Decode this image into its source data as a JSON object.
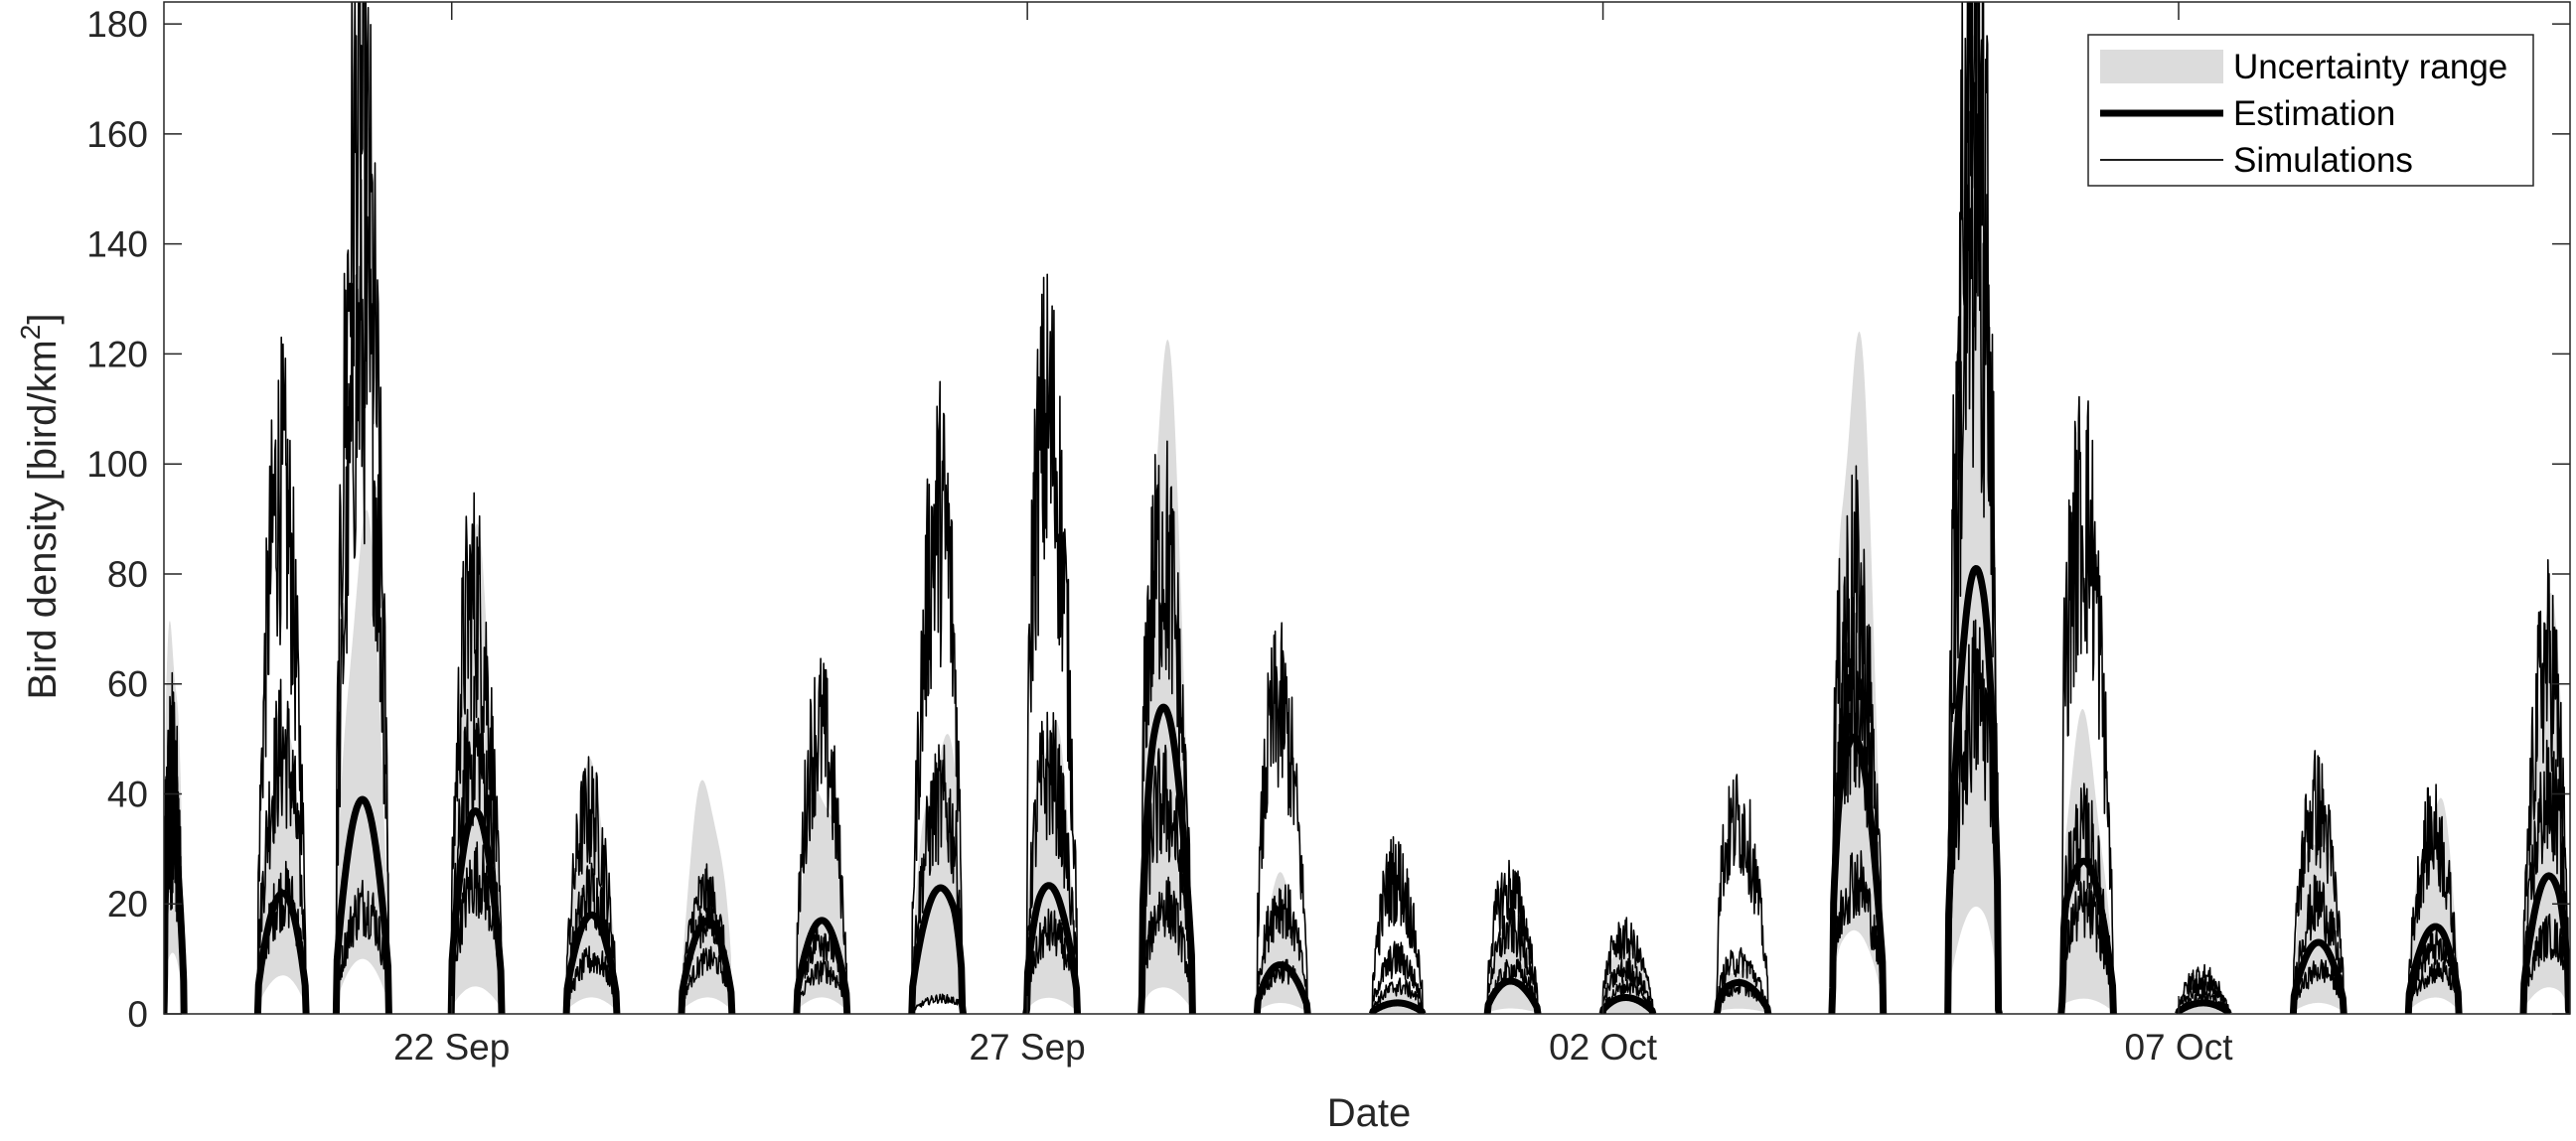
{
  "chart_data": {
    "type": "area",
    "xlabel": "Date",
    "ylabel_main": "Bird density [bird/km",
    "ylabel_sup": "2",
    "ylabel_end": "]",
    "ylim": [
      0,
      184
    ],
    "xlim_days": [
      19.5,
      40.4
    ],
    "yticks": [
      0,
      20,
      40,
      60,
      80,
      100,
      120,
      140,
      160,
      180
    ],
    "xticks": [
      {
        "day": 22,
        "label": "22 Sep"
      },
      {
        "day": 27,
        "label": "27 Sep"
      },
      {
        "day": 32,
        "label": "02 Oct"
      },
      {
        "day": 37,
        "label": "07 Oct"
      }
    ],
    "grid": false,
    "legend_position": "top-right",
    "legend": [
      {
        "key": "band",
        "label": "Uncertainty range"
      },
      {
        "key": "est",
        "label": "Estimation"
      },
      {
        "key": "sim",
        "label": "Simulations"
      }
    ],
    "colors": {
      "band": "#dcdcdc",
      "estimation": "#000000",
      "simulations": "#000000",
      "axis": "#262626"
    },
    "series": [
      {
        "name": "Uncertainty range",
        "kind": "band"
      },
      {
        "name": "Estimation",
        "kind": "line"
      },
      {
        "name": "Simulations",
        "kind": "lines"
      }
    ],
    "nights": [
      {
        "start": 19.5,
        "end": 19.68,
        "est": 35,
        "estPeak": 0.1,
        "bandHi": 85,
        "bandLo": 12,
        "sims": [
          51,
          45,
          30
        ],
        "roughness": 0.35
      },
      {
        "start": 20.3,
        "end": 20.75,
        "est": 22,
        "estPeak": 0.55,
        "bandHi": 57,
        "bandLo": 7,
        "sims": [
          96,
          48,
          22
        ],
        "roughness": 0.3
      },
      {
        "start": 20.98,
        "end": 21.47,
        "est": 39,
        "estPeak": 0.5,
        "bandHi": 96,
        "bandLo": 10,
        "sims": [
          162,
          120,
          20
        ],
        "roughness": 0.3
      },
      {
        "start": 21.98,
        "end": 22.45,
        "est": 37,
        "estPeak": 0.45,
        "bandHi": 90,
        "bandLo": 5,
        "sims": [
          77,
          48,
          25
        ],
        "roughness": 0.3
      },
      {
        "start": 22.98,
        "end": 23.45,
        "est": 18,
        "estPeak": 0.5,
        "bandHi": 47,
        "bandLo": 3,
        "sims": [
          37,
          22,
          10
        ],
        "roughness": 0.3
      },
      {
        "start": 23.98,
        "end": 24.45,
        "est": 17,
        "estPeak": 0.55,
        "bandHi": 46,
        "bandLo": 3,
        "sims": [
          22,
          17,
          10
        ],
        "roughness": 0.25
      },
      {
        "start": 24.98,
        "end": 25.45,
        "est": 17,
        "estPeak": 0.5,
        "bandHi": 48,
        "bandLo": 3,
        "sims": [
          52,
          14,
          8
        ],
        "roughness": 0.3
      },
      {
        "start": 25.98,
        "end": 26.45,
        "est": 24,
        "estPeak": 0.8,
        "bandHi": 58,
        "bandLo": 3,
        "sims": [
          92,
          40,
          3
        ],
        "roughness": 0.3
      },
      {
        "start": 26.98,
        "end": 27.45,
        "est": 24,
        "estPeak": 0.3,
        "bandHi": 61,
        "bandLo": 3,
        "sims": [
          113,
          45,
          15
        ],
        "roughness": 0.3
      },
      {
        "start": 27.98,
        "end": 28.45,
        "est": 58,
        "estPeak": 0.25,
        "bandHi": 132,
        "bandLo": 5,
        "sims": [
          90,
          40,
          20
        ],
        "roughness": 0.3
      },
      {
        "start": 28.98,
        "end": 29.45,
        "est": 9,
        "estPeak": 0.4,
        "bandHi": 26,
        "bandLo": 2,
        "sims": [
          57,
          20,
          8
        ],
        "roughness": 0.3
      },
      {
        "start": 29.98,
        "end": 30.45,
        "est": 2,
        "estPeak": 0.5,
        "bandHi": 5,
        "bandLo": 0,
        "sims": [
          25,
          10,
          5
        ],
        "roughness": 0.35
      },
      {
        "start": 30.98,
        "end": 31.45,
        "est": 6,
        "estPeak": 0.4,
        "bandHi": 18,
        "bandLo": 1,
        "sims": [
          23,
          15,
          8
        ],
        "roughness": 0.3
      },
      {
        "start": 31.98,
        "end": 32.45,
        "est": 3,
        "estPeak": 0.4,
        "bandHi": 14,
        "bandLo": 0,
        "sims": [
          14,
          8,
          5
        ],
        "roughness": 0.3
      },
      {
        "start": 32.98,
        "end": 33.45,
        "est": 6,
        "estPeak": 0.2,
        "bandHi": 10,
        "bandLo": 1,
        "sims": [
          38,
          10,
          5
        ],
        "roughness": 0.3
      },
      {
        "start": 33.98,
        "end": 34.45,
        "est": 53,
        "estPeak": 0.2,
        "bandHi": 138,
        "bandLo": 16,
        "sims": [
          84,
          60,
          25
        ],
        "roughness": 0.3
      },
      {
        "start": 34.98,
        "end": 35.45,
        "est": 83,
        "estPeak": 0.7,
        "bandHi": 184,
        "bandLo": 20,
        "sims": [
          184,
          140,
          60
        ],
        "roughness": 0.3
      },
      {
        "start": 35.98,
        "end": 36.45,
        "est": 30,
        "estPeak": 0.1,
        "bandHi": 60,
        "bandLo": 3,
        "sims": [
          99,
          35,
          20
        ],
        "roughness": 0.3
      },
      {
        "start": 36.98,
        "end": 37.45,
        "est": 2,
        "estPeak": 0.5,
        "bandHi": 8,
        "bandLo": 0,
        "sims": [
          7,
          5,
          3
        ],
        "roughness": 0.35
      },
      {
        "start": 37.98,
        "end": 38.45,
        "est": 13,
        "estPeak": 0.5,
        "bandHi": 38,
        "bandLo": 2,
        "sims": [
          38,
          20,
          8
        ],
        "roughness": 0.3
      },
      {
        "start": 38.98,
        "end": 39.45,
        "est": 16,
        "estPeak": 0.6,
        "bandHi": 43,
        "bandLo": 3,
        "sims": [
          33,
          12,
          8
        ],
        "roughness": 0.3
      },
      {
        "start": 39.98,
        "end": 40.4,
        "est": 26,
        "estPeak": 0.75,
        "bandHi": 80,
        "bandLo": 5,
        "sims": [
          65,
          40,
          15
        ],
        "roughness": 0.3
      }
    ]
  }
}
